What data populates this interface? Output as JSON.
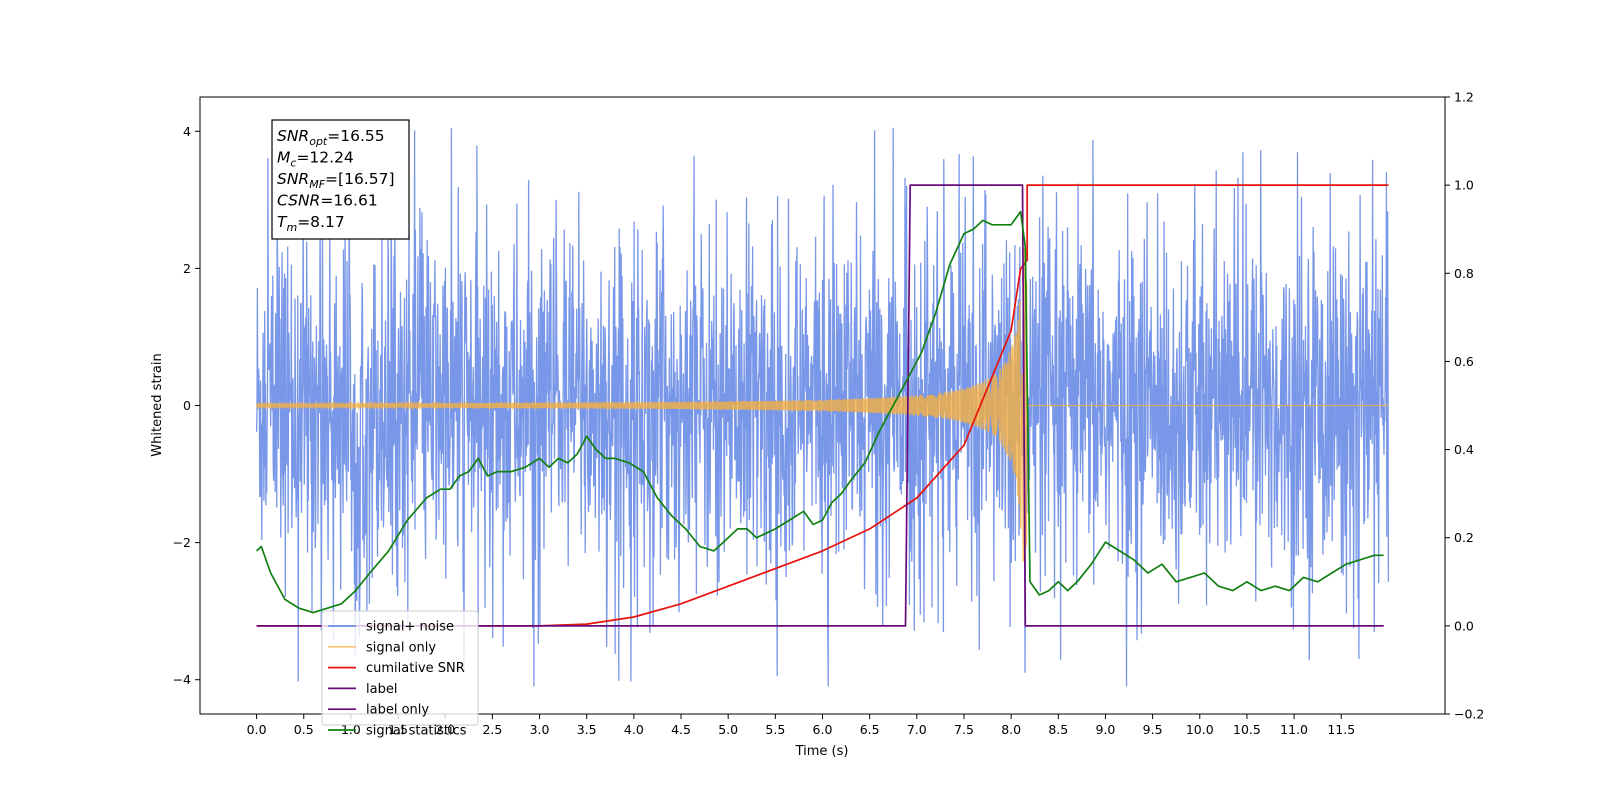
{
  "chart_data": {
    "type": "line",
    "xlabel": "Time (s)",
    "ylabel": "Whitened strain",
    "xlim": [
      -0.6,
      12.6
    ],
    "ylim": [
      -4.5,
      4.5
    ],
    "y2lim": [
      -0.2,
      1.2
    ],
    "x_ticks": [
      0.0,
      0.5,
      1.0,
      1.5,
      2.0,
      2.5,
      3.0,
      3.5,
      4.0,
      4.5,
      5.0,
      5.5,
      6.0,
      6.5,
      7.0,
      7.5,
      8.0,
      8.5,
      9.0,
      9.5,
      10.0,
      10.5,
      11.0,
      11.5
    ],
    "x_tick_labels": [
      "0.0",
      "0.5",
      "1.0",
      "1.5",
      "2.0",
      "2.5",
      "3.0",
      "3.5",
      "4.0",
      "4.5",
      "5.0",
      "5.5",
      "6.0",
      "6.5",
      "7.0",
      "7.5",
      "8.0",
      "8.5",
      "9.0",
      "9.5",
      "10.0",
      "10.5",
      "11.0",
      "11.5"
    ],
    "y_ticks": [
      -4,
      -2,
      0,
      2,
      4
    ],
    "y_tick_labels": [
      "−4",
      "−2",
      "0",
      "2",
      "4"
    ],
    "y2_ticks": [
      -0.2,
      0.0,
      0.2,
      0.4,
      0.6,
      0.8,
      1.0,
      1.2
    ],
    "y2_tick_labels": [
      "−0.2",
      "0.0",
      "0.2",
      "0.4",
      "0.6",
      "0.8",
      "1.0",
      "1.2"
    ],
    "grid": false,
    "legend_placement": "lower-left",
    "annotation": {
      "lines": [
        {
          "main": "SNR",
          "sub": "opt",
          "value": "=16.55"
        },
        {
          "main": "M",
          "sub": "c",
          "value": "=12.24"
        },
        {
          "main": "SNR",
          "sub": "MF",
          "value": "=[16.57]"
        },
        {
          "main": "CSNR",
          "sub": "",
          "value": "=16.61"
        },
        {
          "main": "T",
          "sub": "m",
          "value": "=8.17"
        }
      ]
    },
    "series": [
      {
        "name": "signal+ noise",
        "axis": "left",
        "color": "#6e8ee6",
        "x_range": [
          0.0,
          12.0
        ],
        "amplitude_typical": 1.3,
        "amplitude_peak": 4.05,
        "note_values": "dense noise"
      },
      {
        "name": "signal only",
        "axis": "left",
        "color": "#f5b041",
        "chirp_start": 0.0,
        "chirp_end": 8.17,
        "amplitude_end": 2.3
      },
      {
        "name": "cumilative SNR",
        "axis": "right",
        "color": "#e8120c",
        "x": [
          0.0,
          3.0,
          3.5,
          4.0,
          4.5,
          5.0,
          5.5,
          6.0,
          6.5,
          7.0,
          7.5,
          8.0,
          8.1,
          8.17,
          8.17,
          12.0
        ],
        "y": [
          0.0,
          0.0,
          0.004,
          0.02,
          0.05,
          0.09,
          0.13,
          0.17,
          0.22,
          0.29,
          0.41,
          0.67,
          0.81,
          0.83,
          1.0,
          1.0
        ]
      },
      {
        "name": "label",
        "axis": "right",
        "color": "#6a0a7a",
        "x": [
          0.0,
          6.88,
          6.93,
          8.12,
          8.15,
          11.95
        ],
        "y": [
          0.0,
          0.0,
          1.0,
          1.0,
          0.0,
          0.0
        ]
      },
      {
        "name": "label only",
        "axis": "right",
        "color": "#6a0a7a",
        "x": [],
        "y": []
      },
      {
        "name": "signal statistics",
        "axis": "right",
        "color": "#118011",
        "x": [
          0.0,
          0.05,
          0.15,
          0.3,
          0.45,
          0.6,
          0.75,
          0.9,
          1.05,
          1.2,
          1.4,
          1.6,
          1.8,
          1.95,
          2.05,
          2.15,
          2.25,
          2.35,
          2.45,
          2.55,
          2.7,
          2.85,
          3.0,
          3.1,
          3.2,
          3.3,
          3.4,
          3.5,
          3.6,
          3.7,
          3.8,
          3.95,
          4.1,
          4.25,
          4.4,
          4.55,
          4.7,
          4.85,
          5.0,
          5.1,
          5.2,
          5.3,
          5.4,
          5.5,
          5.65,
          5.8,
          5.9,
          6.0,
          6.1,
          6.2,
          6.3,
          6.45,
          6.6,
          6.75,
          6.9,
          7.05,
          7.2,
          7.35,
          7.5,
          7.6,
          7.7,
          7.8,
          7.9,
          8.0,
          8.1,
          8.15,
          8.2,
          8.3,
          8.4,
          8.5,
          8.6,
          8.7,
          8.85,
          9.0,
          9.15,
          9.3,
          9.45,
          9.6,
          9.75,
          9.9,
          10.05,
          10.2,
          10.35,
          10.5,
          10.65,
          10.8,
          10.95,
          11.1,
          11.25,
          11.4,
          11.55,
          11.7,
          11.85,
          11.95
        ],
        "y": [
          0.17,
          0.18,
          0.12,
          0.06,
          0.04,
          0.03,
          0.04,
          0.05,
          0.08,
          0.12,
          0.17,
          0.24,
          0.29,
          0.31,
          0.31,
          0.34,
          0.35,
          0.38,
          0.34,
          0.35,
          0.35,
          0.36,
          0.38,
          0.36,
          0.38,
          0.37,
          0.39,
          0.43,
          0.4,
          0.38,
          0.38,
          0.37,
          0.35,
          0.29,
          0.25,
          0.22,
          0.18,
          0.17,
          0.2,
          0.22,
          0.22,
          0.2,
          0.21,
          0.22,
          0.24,
          0.26,
          0.23,
          0.24,
          0.28,
          0.3,
          0.33,
          0.37,
          0.44,
          0.5,
          0.56,
          0.62,
          0.71,
          0.82,
          0.89,
          0.9,
          0.92,
          0.91,
          0.91,
          0.91,
          0.94,
          0.86,
          0.1,
          0.07,
          0.08,
          0.1,
          0.08,
          0.1,
          0.14,
          0.19,
          0.17,
          0.15,
          0.12,
          0.14,
          0.1,
          0.11,
          0.12,
          0.09,
          0.08,
          0.1,
          0.08,
          0.09,
          0.08,
          0.11,
          0.1,
          0.12,
          0.14,
          0.15,
          0.16,
          0.16
        ]
      }
    ]
  }
}
